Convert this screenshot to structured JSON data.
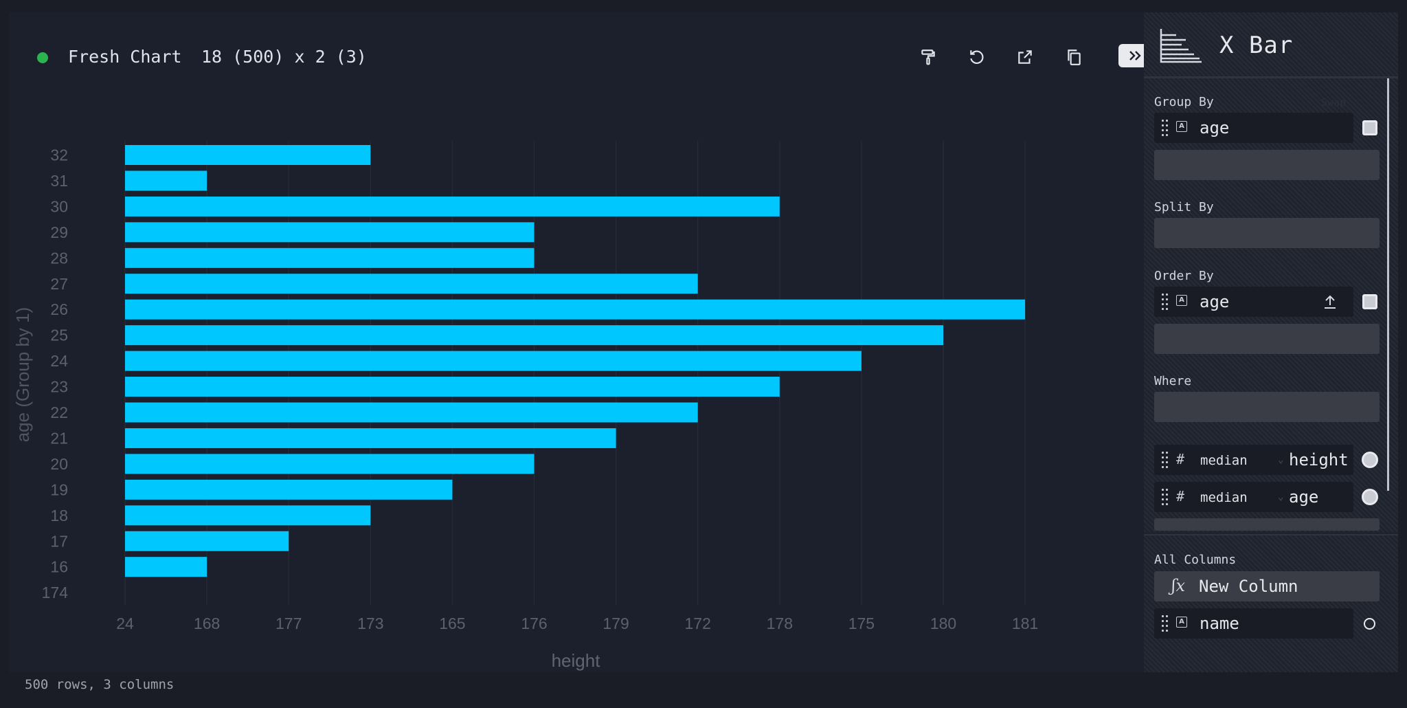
{
  "header": {
    "title": "Fresh Chart",
    "dimensions": "18 (500) x 2 (3)"
  },
  "toolbar": {
    "icons": [
      "paint-roller-icon",
      "undo-icon",
      "export-icon",
      "copy-icon",
      "collapse-chevrons-icon"
    ]
  },
  "status": {
    "indicator_color": "#2bb44e",
    "footer": "500 rows, 3 columns"
  },
  "sidebar": {
    "plugin_name": "X Bar",
    "plugin_icon": "x-bar-chart-icon",
    "group_by": {
      "label": "Group By",
      "swap_label": "Swap",
      "items": [
        {
          "type": "string",
          "name": "age"
        }
      ]
    },
    "split_by": {
      "label": "Split By"
    },
    "order_by": {
      "label": "Order By",
      "items": [
        {
          "type": "string",
          "name": "age",
          "direction": "ascending"
        }
      ]
    },
    "where": {
      "label": "Where"
    },
    "columns": [
      {
        "type": "number",
        "aggregate": "median",
        "name": "height"
      },
      {
        "type": "number",
        "aggregate": "median",
        "name": "age"
      }
    ],
    "all_columns": {
      "label": "All Columns",
      "new_column_label": "New Column",
      "items": [
        {
          "type": "string",
          "name": "name"
        }
      ]
    }
  },
  "chart_data": {
    "type": "bar",
    "orientation": "horizontal",
    "xlabel": "height",
    "ylabel": "age (Group by 1)",
    "bar_color": "#00c8ff",
    "categories": [
      "32",
      "31",
      "30",
      "29",
      "28",
      "27",
      "26",
      "25",
      "24",
      "23",
      "22",
      "21",
      "20",
      "19",
      "18",
      "17",
      "16",
      "174"
    ],
    "values": [
      173,
      168,
      178,
      176,
      176,
      172,
      181,
      180,
      175,
      178,
      172,
      179,
      176,
      165,
      173,
      177,
      168,
      null
    ],
    "x_tick_labels": [
      "24",
      "168",
      "177",
      "173",
      "165",
      "176",
      "179",
      "172",
      "178",
      "175",
      "180",
      "181"
    ],
    "grid": true
  }
}
